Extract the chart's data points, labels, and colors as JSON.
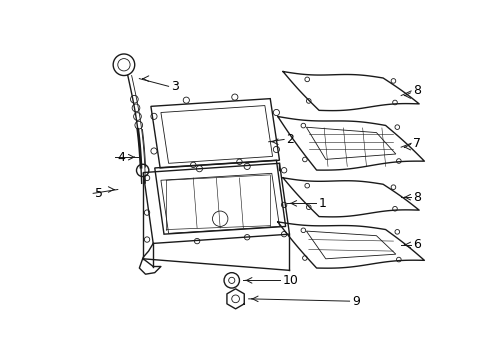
{
  "background_color": "#ffffff",
  "line_color": "#1a1a1a",
  "label_color": "#000000",
  "fig_width": 4.89,
  "fig_height": 3.6,
  "dpi": 100
}
